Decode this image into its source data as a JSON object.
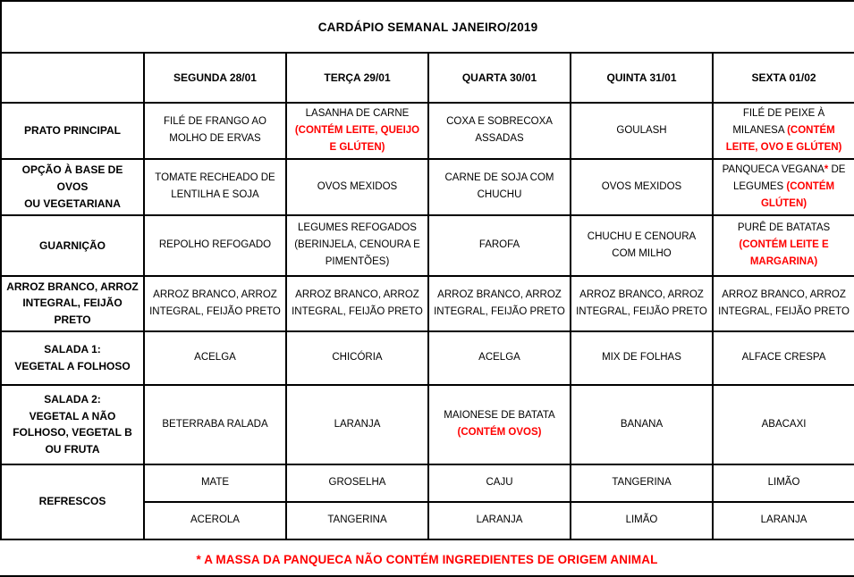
{
  "title": "CARDÁPIO SEMANAL JANEIRO/2019",
  "footnote": "* A MASSA DA PANQUECA NÃO CONTÉM INGREDIENTES DE ORIGEM ANIMAL",
  "colors": {
    "accent_red": "#ff0000",
    "text": "#000000",
    "border": "#000000",
    "background": "#ffffff"
  },
  "columns": [
    "SEGUNDA  28/01",
    "TERÇA 29/01",
    "QUARTA 30/01",
    "QUINTA 31/01",
    "SEXTA 01/02"
  ],
  "rows": [
    {
      "label": "PRATO PRINCIPAL",
      "cells": [
        [
          {
            "t": "FILÉ DE FRANGO AO MOLHO DE ERVAS",
            "red": false
          }
        ],
        [
          {
            "t": "LASANHA DE CARNE ",
            "red": false
          },
          {
            "t": "(CONTÉM LEITE, QUEIJO E GLÚTEN)",
            "red": true
          }
        ],
        [
          {
            "t": "COXA E SOBRECOXA ASSADAS",
            "red": false
          }
        ],
        [
          {
            "t": "GOULASH",
            "red": false
          }
        ],
        [
          {
            "t": "FILÉ DE PEIXE À MILANESA ",
            "red": false
          },
          {
            "t": "(CONTÉM LEITE, OVO E GLÚTEN)",
            "red": true
          }
        ]
      ]
    },
    {
      "label": "OPÇÃO À BASE DE OVOS\nOU VEGETARIANA",
      "cells": [
        [
          {
            "t": "TOMATE RECHEADO DE LENTILHA E SOJA",
            "red": false
          }
        ],
        [
          {
            "t": "OVOS MEXIDOS",
            "red": false
          }
        ],
        [
          {
            "t": "CARNE DE SOJA COM CHUCHU",
            "red": false
          }
        ],
        [
          {
            "t": "OVOS MEXIDOS",
            "red": false
          }
        ],
        [
          {
            "t": "PANQUECA VEGANA",
            "red": false
          },
          {
            "t": "*",
            "red": true
          },
          {
            "t": " DE LEGUMES ",
            "red": false
          },
          {
            "t": "(CONTÉM GLÚTEN)",
            "red": true
          }
        ]
      ]
    },
    {
      "label": "GUARNIÇÃO",
      "cells": [
        [
          {
            "t": "REPOLHO REFOGADO",
            "red": false
          }
        ],
        [
          {
            "t": "LEGUMES REFOGADOS (BERINJELA, CENOURA E PIMENTÕES)",
            "red": false
          }
        ],
        [
          {
            "t": "FAROFA",
            "red": false
          }
        ],
        [
          {
            "t": "CHUCHU E CENOURA COM MILHO",
            "red": false
          }
        ],
        [
          {
            "t": "PURÊ DE BATATAS ",
            "red": false
          },
          {
            "t": "(CONTÉM LEITE E MARGARINA)",
            "red": true
          }
        ]
      ]
    },
    {
      "label": "ARROZ BRANCO, ARROZ\nINTEGRAL, FEIJÃO PRETO",
      "cells": [
        [
          {
            "t": "ARROZ BRANCO, ARROZ INTEGRAL, FEIJÃO PRETO",
            "red": false
          }
        ],
        [
          {
            "t": "ARROZ BRANCO, ARROZ INTEGRAL, FEIJÃO PRETO",
            "red": false
          }
        ],
        [
          {
            "t": "ARROZ BRANCO, ARROZ INTEGRAL, FEIJÃO PRETO",
            "red": false
          }
        ],
        [
          {
            "t": "ARROZ BRANCO, ARROZ INTEGRAL, FEIJÃO PRETO",
            "red": false
          }
        ],
        [
          {
            "t": "ARROZ BRANCO, ARROZ INTEGRAL, FEIJÃO PRETO",
            "red": false
          }
        ]
      ]
    },
    {
      "label": "SALADA 1:\nVEGETAL A FOLHOSO",
      "cells": [
        [
          {
            "t": "ACELGA",
            "red": false
          }
        ],
        [
          {
            "t": "CHICÓRIA",
            "red": false
          }
        ],
        [
          {
            "t": "ACELGA",
            "red": false
          }
        ],
        [
          {
            "t": "MIX DE FOLHAS",
            "red": false
          }
        ],
        [
          {
            "t": "ALFACE CRESPA",
            "red": false
          }
        ]
      ]
    },
    {
      "label": "SALADA 2:\nVEGETAL A NÃO\nFOLHOSO, VEGETAL B\nOU FRUTA",
      "cells": [
        [
          {
            "t": "BETERRABA RALADA",
            "red": false
          }
        ],
        [
          {
            "t": "LARANJA",
            "red": false
          }
        ],
        [
          {
            "t": "MAIONESE DE BATATA ",
            "red": false
          },
          {
            "t": "(CONTÉM OVOS)",
            "red": true
          }
        ],
        [
          {
            "t": "BANANA",
            "red": false
          }
        ],
        [
          {
            "t": "ABACAXI",
            "red": false
          }
        ]
      ]
    },
    {
      "label": "REFRESCOS",
      "sub_rows": [
        [
          [
            {
              "t": "MATE",
              "red": false
            }
          ],
          [
            {
              "t": "GROSELHA",
              "red": false
            }
          ],
          [
            {
              "t": "CAJU",
              "red": false
            }
          ],
          [
            {
              "t": "TANGERINA",
              "red": false
            }
          ],
          [
            {
              "t": "LIMÃO",
              "red": false
            }
          ]
        ],
        [
          [
            {
              "t": "ACEROLA",
              "red": false
            }
          ],
          [
            {
              "t": "TANGERINA",
              "red": false
            }
          ],
          [
            {
              "t": "LARANJA",
              "red": false
            }
          ],
          [
            {
              "t": "LIMÃO",
              "red": false
            }
          ],
          [
            {
              "t": "LARANJA",
              "red": false
            }
          ]
        ]
      ]
    }
  ]
}
